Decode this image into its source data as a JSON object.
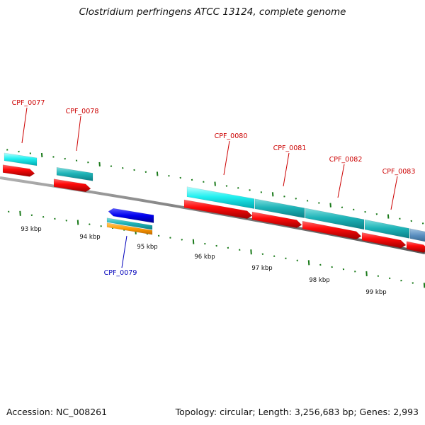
{
  "title": "Clostridium perfringens ATCC 13124, complete genome",
  "footer": {
    "accession": "Accession: NC_008261",
    "summary": "Topology: circular; Length: 3,256,683 bp; Genes: 2,993"
  },
  "colors": {
    "backbone": "#808080",
    "cds_red": "#e00000",
    "tick_green": "#1a7a1a",
    "label_red": "#cc0000",
    "label_blue": "#0000bb"
  },
  "ruler_labels": [
    "93 kbp",
    "94 kbp",
    "95 kbp",
    "96 kbp",
    "97 kbp",
    "98 kbp",
    "99 kbp"
  ],
  "genes": [
    {
      "name": "CPF_0077",
      "color": "label_red"
    },
    {
      "name": "CPF_0078",
      "color": "label_red"
    },
    {
      "name": "CPF_0079",
      "color": "label_blue"
    },
    {
      "name": "CPF_0080",
      "color": "label_red"
    },
    {
      "name": "CPF_0081",
      "color": "label_red"
    },
    {
      "name": "CPF_0082",
      "color": "label_red"
    },
    {
      "name": "CPF_0083",
      "color": "label_red"
    }
  ]
}
